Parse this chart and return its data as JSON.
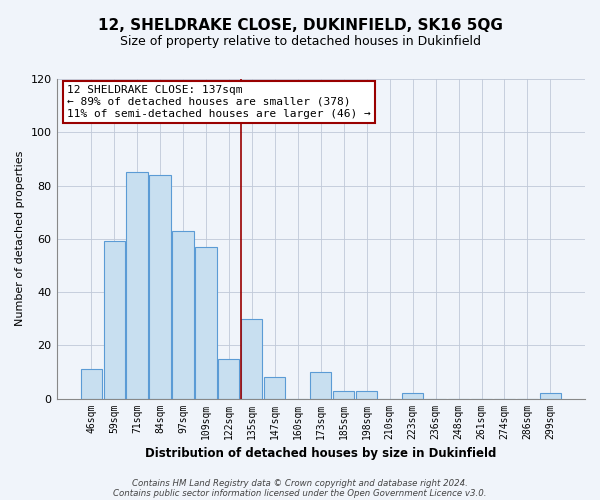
{
  "title": "12, SHELDRAKE CLOSE, DUKINFIELD, SK16 5QG",
  "subtitle": "Size of property relative to detached houses in Dukinfield",
  "xlabel": "Distribution of detached houses by size in Dukinfield",
  "ylabel": "Number of detached properties",
  "bar_labels": [
    "46sqm",
    "59sqm",
    "71sqm",
    "84sqm",
    "97sqm",
    "109sqm",
    "122sqm",
    "135sqm",
    "147sqm",
    "160sqm",
    "173sqm",
    "185sqm",
    "198sqm",
    "210sqm",
    "223sqm",
    "236sqm",
    "248sqm",
    "261sqm",
    "274sqm",
    "286sqm",
    "299sqm"
  ],
  "bar_values": [
    11,
    59,
    85,
    84,
    63,
    57,
    15,
    30,
    8,
    0,
    10,
    3,
    3,
    0,
    2,
    0,
    0,
    0,
    0,
    0,
    2
  ],
  "bar_color": "#c8dff0",
  "bar_edge_color": "#5b9bd5",
  "highlight_bar_index": 7,
  "highlight_color": "#990000",
  "annotation_line1": "12 SHELDRAKE CLOSE: 137sqm",
  "annotation_line2": "← 89% of detached houses are smaller (378)",
  "annotation_line3": "11% of semi-detached houses are larger (46) →",
  "ylim": [
    0,
    120
  ],
  "yticks": [
    0,
    20,
    40,
    60,
    80,
    100,
    120
  ],
  "footer1": "Contains HM Land Registry data © Crown copyright and database right 2024.",
  "footer2": "Contains public sector information licensed under the Open Government Licence v3.0.",
  "background_color": "#f0f4fa",
  "grid_color": "#c0c8d8"
}
